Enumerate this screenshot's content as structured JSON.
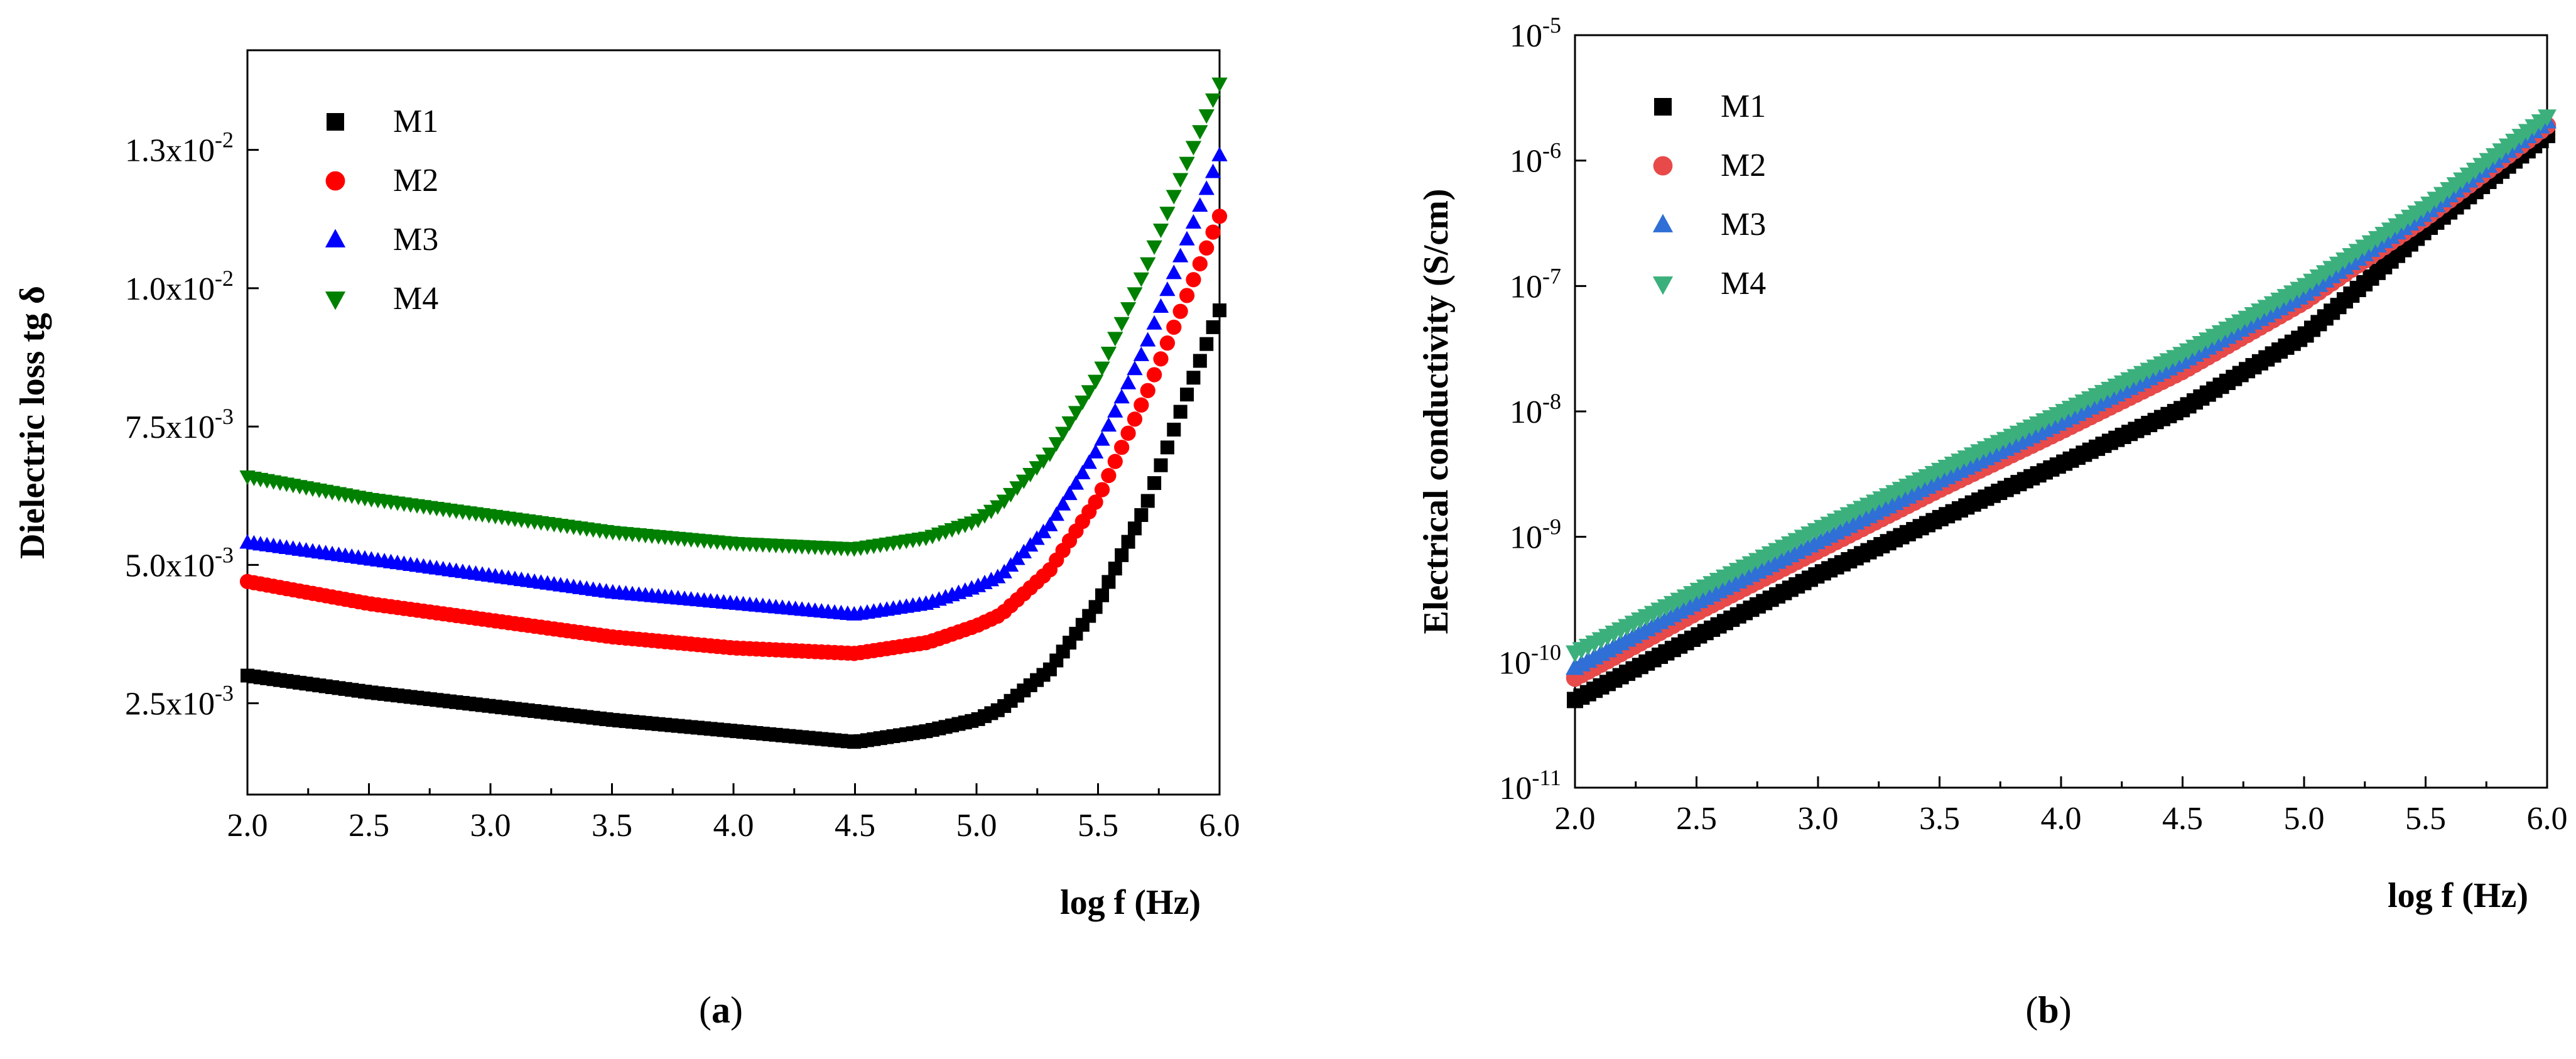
{
  "chart_data": [
    {
      "type": "scatter",
      "panel_label": "a",
      "xlabel": "log f (Hz)",
      "ylabel": "Dielectric loss tg δ",
      "xlim": [
        2.0,
        6.0
      ],
      "ylim": [
        0.00085,
        0.0143
      ],
      "x_ticks": [
        "2.0",
        "2.5",
        "3.0",
        "3.5",
        "4.0",
        "4.5",
        "5.0",
        "5.5",
        "6.0"
      ],
      "y_ticks": [
        {
          "value": 0.0025,
          "mantissa": "2.5x10",
          "exp": "-3"
        },
        {
          "value": 0.005,
          "mantissa": "5.0x10",
          "exp": "-3"
        },
        {
          "value": 0.0075,
          "mantissa": "7.5x10",
          "exp": "-3"
        },
        {
          "value": 0.01,
          "mantissa": "1.0x10",
          "exp": "-2"
        },
        {
          "value": 0.0125,
          "mantissa": "1.3x10",
          "exp": "-2"
        }
      ],
      "legend_position": "top-left",
      "series": [
        {
          "name": "M1",
          "color": "#000000",
          "marker": "square",
          "x": [
            2.0,
            2.5,
            3.0,
            3.5,
            4.0,
            4.5,
            4.8,
            5.0,
            5.1,
            5.3,
            5.5,
            5.7,
            5.85,
            6.0
          ],
          "y": [
            0.003,
            0.0027,
            0.00245,
            0.0022,
            0.002,
            0.0018,
            0.002,
            0.0022,
            0.0024,
            0.0031,
            0.0043,
            0.0061,
            0.0079,
            0.0096
          ]
        },
        {
          "name": "M2",
          "color": "#ff0000",
          "marker": "circle",
          "x": [
            2.0,
            2.5,
            3.0,
            3.5,
            4.0,
            4.5,
            4.8,
            5.0,
            5.1,
            5.3,
            5.5,
            5.7,
            5.85,
            6.0
          ],
          "y": [
            0.0047,
            0.0043,
            0.004,
            0.0037,
            0.0035,
            0.0034,
            0.0036,
            0.0039,
            0.0041,
            0.0049,
            0.0062,
            0.0081,
            0.0097,
            0.0113
          ]
        },
        {
          "name": "M3",
          "color": "#0000ff",
          "marker": "triangle-up",
          "x": [
            2.0,
            2.5,
            3.0,
            3.5,
            4.0,
            4.5,
            4.8,
            5.0,
            5.1,
            5.3,
            5.5,
            5.7,
            5.85,
            6.0
          ],
          "y": [
            0.0054,
            0.0051,
            0.0048,
            0.0045,
            0.0043,
            0.0041,
            0.0043,
            0.0046,
            0.0048,
            0.0057,
            0.0071,
            0.009,
            0.0107,
            0.0124
          ]
        },
        {
          "name": "M4",
          "color": "#008000",
          "marker": "triangle-down",
          "x": [
            2.0,
            2.5,
            3.0,
            3.5,
            4.0,
            4.5,
            4.8,
            5.0,
            5.1,
            5.3,
            5.5,
            5.7,
            5.85,
            6.0
          ],
          "y": [
            0.0066,
            0.0062,
            0.0059,
            0.0056,
            0.0054,
            0.0053,
            0.0055,
            0.0058,
            0.0061,
            0.007,
            0.0084,
            0.0104,
            0.0121,
            0.0137
          ]
        }
      ]
    },
    {
      "type": "scatter",
      "panel_label": "b",
      "xlabel": "log f (Hz)",
      "ylabel": "Electrical conductivity (S/cm)",
      "xlim": [
        2.0,
        6.0
      ],
      "ylim": [
        1e-11,
        1e-05
      ],
      "yscale": "log",
      "x_ticks": [
        "2.0",
        "2.5",
        "3.0",
        "3.5",
        "4.0",
        "4.5",
        "5.0",
        "5.5",
        "6.0"
      ],
      "y_ticks": [
        {
          "value": 1e-11,
          "mantissa": "10",
          "exp": "-11"
        },
        {
          "value": 1e-10,
          "mantissa": "10",
          "exp": "-10"
        },
        {
          "value": 1e-09,
          "mantissa": "10",
          "exp": "-9"
        },
        {
          "value": 1e-08,
          "mantissa": "10",
          "exp": "-8"
        },
        {
          "value": 1e-07,
          "mantissa": "10",
          "exp": "-7"
        },
        {
          "value": 1e-06,
          "mantissa": "10",
          "exp": "-6"
        },
        {
          "value": 1e-05,
          "mantissa": "10",
          "exp": "-5"
        }
      ],
      "legend_position": "top-left",
      "series": [
        {
          "name": "M1",
          "color": "#000000",
          "marker": "square",
          "x": [
            2.0,
            2.5,
            3.0,
            3.5,
            4.0,
            4.5,
            5.0,
            5.5,
            6.0
          ],
          "y": [
            5e-11,
            1.6e-10,
            5e-10,
            1.4e-09,
            3.8e-09,
            1.05e-08,
            4e-08,
            2.8e-07,
            1.6e-06
          ]
        },
        {
          "name": "M2",
          "color": "#e84a4a",
          "marker": "circle",
          "x": [
            2.0,
            2.5,
            3.0,
            3.5,
            4.0,
            4.5,
            5.0,
            5.5,
            6.0
          ],
          "y": [
            7.5e-11,
            2.5e-10,
            7.8e-10,
            2.4e-09,
            7e-09,
            2.1e-08,
            7.5e-08,
            3.5e-07,
            1.9e-06
          ]
        },
        {
          "name": "M3",
          "color": "#2f6fd6",
          "marker": "triangle-up",
          "x": [
            2.0,
            2.5,
            3.0,
            3.5,
            4.0,
            4.5,
            5.0,
            5.5,
            6.0
          ],
          "y": [
            9e-11,
            3e-10,
            9.2e-10,
            2.8e-09,
            8.2e-09,
            2.5e-08,
            8.5e-08,
            3.8e-07,
            2.05e-06
          ]
        },
        {
          "name": "M4",
          "color": "#3cb07c",
          "marker": "triangle-down",
          "x": [
            2.0,
            2.5,
            3.0,
            3.5,
            4.0,
            4.5,
            5.0,
            5.5,
            6.0
          ],
          "y": [
            1.2e-10,
            3.7e-10,
            1.15e-09,
            3.4e-09,
            9.8e-09,
            2.9e-08,
            1e-07,
            4.3e-07,
            2.25e-06
          ]
        }
      ]
    }
  ]
}
